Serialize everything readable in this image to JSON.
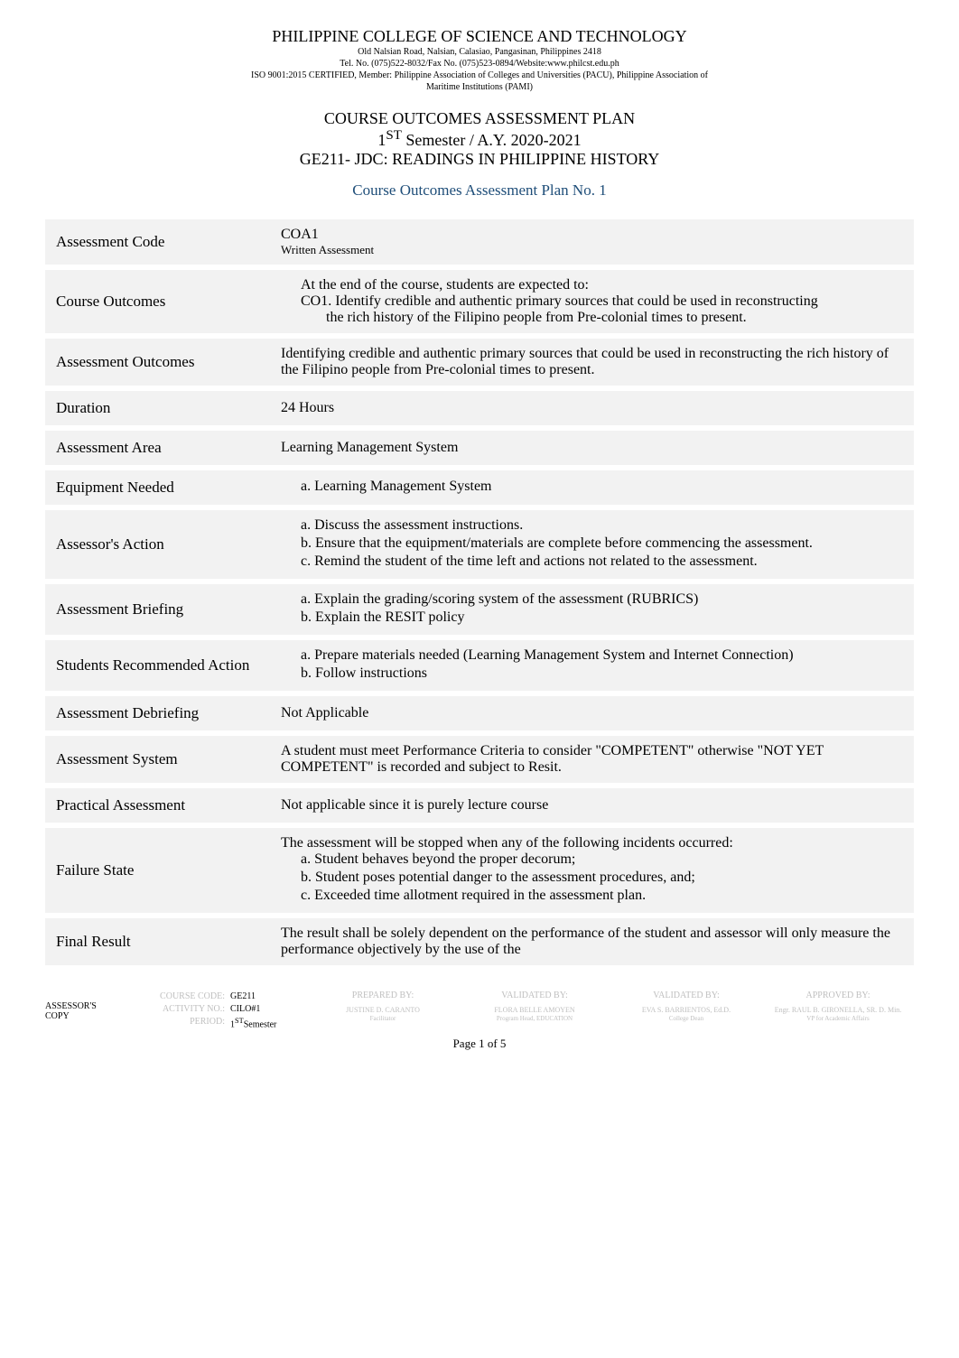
{
  "header": {
    "institution": "PHILIPPINE COLLEGE OF SCIENCE AND TECHNOLOGY",
    "address": "Old Nalsian Road, Nalsian, Calasiao, Pangasinan, Philippines 2418",
    "contact": "Tel. No. (075)522-8032/Fax No. (075)523-0894/Website:www.philcst.edu.ph",
    "cert": "ISO 9001:2015 CERTIFIED, Member: Philippine Association of Colleges and Universities (PACU), Philippine Association of",
    "cert2": "Maritime Institutions (PAMI)"
  },
  "course_block": {
    "line1": "COURSE OUTCOMES ASSESSMENT PLAN",
    "line2_a": "1",
    "line2_sup": "ST",
    "line2_b": " Semester / A.Y. 2020-2021",
    "line3": "GE211- JDC: READINGS IN PHILIPPINE HISTORY"
  },
  "coap_title": "Course Outcomes Assessment Plan No. 1",
  "rows": [
    {
      "label": "Assessment Code",
      "content_lines": [
        "COA1"
      ],
      "sub_lines": [
        "Written Assessment"
      ]
    },
    {
      "label": "Course Outcomes",
      "content_lines": [],
      "indented_lines": [
        "At the end of the course, students are expected to:",
        "CO1. Identify credible and authentic primary sources that could be used in reconstructing"
      ],
      "indented2_lines": [
        "the rich history of the Filipino people from Pre-colonial times to present."
      ]
    },
    {
      "label": "Assessment Outcomes",
      "content_lines": [
        "Identifying credible and authentic primary sources that could be used in reconstructing the rich history of the Filipino people from Pre-colonial times to present."
      ]
    },
    {
      "label": "Duration",
      "content_lines": [
        "24 Hours"
      ]
    },
    {
      "label": "Assessment Area",
      "content_lines": [
        "Learning Management System"
      ]
    },
    {
      "label": "Equipment Needed",
      "list_a": [
        "Learning Management System"
      ]
    },
    {
      "label": "Assessor's Action",
      "list_a": [
        "Discuss the assessment instructions.",
        "Ensure that the equipment/materials are complete before commencing the assessment.",
        "Remind the student of the time left and actions not related to the assessment."
      ]
    },
    {
      "label": "Assessment Briefing",
      "list_a": [
        "Explain the grading/scoring system of the assessment (RUBRICS)",
        "Explain the RESIT policy"
      ]
    },
    {
      "label": "Students Recommended Action",
      "list_a": [
        "Prepare materials needed (Learning Management System and Internet Connection)",
        "Follow instructions"
      ]
    },
    {
      "label": "Assessment Debriefing",
      "content_lines": [
        "Not Applicable"
      ]
    },
    {
      "label": "Assessment System",
      "content_lines": [
        "A student must meet Performance Criteria to consider \"COMPETENT\" otherwise \"NOT YET COMPETENT\" is recorded and subject to Resit."
      ]
    },
    {
      "label": "Practical Assessment",
      "content_lines": [
        "Not applicable since it is purely lecture course"
      ]
    },
    {
      "label": "Failure State",
      "content_lines": [
        "The assessment will be stopped when any of the following incidents occurred:"
      ],
      "list_a": [
        "Student behaves beyond the proper decorum;",
        "Student poses potential danger to the assessment procedures, and;",
        "Exceeded time allotment required in the assessment plan."
      ]
    },
    {
      "label": "Final Result",
      "content_lines": [
        "The result shall be solely dependent on the performance of the student and assessor will only measure the performance objectively by the use of the"
      ]
    }
  ],
  "footer": {
    "left_label1": "ASSESSOR'S",
    "left_label2": "COPY",
    "codes": {
      "course_code_label": "COURSE CODE:",
      "course_code": "GE211",
      "activity_no_label": "ACTIVITY NO.:",
      "activity_no": "CILO#1",
      "period_label": "PERIOD:",
      "period_a": "1",
      "period_sup": "ST",
      "period_b": "Semester"
    },
    "cols": [
      {
        "head": "PREPARED BY:",
        "name": "JUSTINE D. CARANTO",
        "role": "Facilitator"
      },
      {
        "head": "VALIDATED BY:",
        "name": "FLORA BELLE AMOYEN",
        "role": "Program Head, EDUCATION"
      },
      {
        "head": "VALIDATED BY:",
        "name": "EVA S. BARRIENTOS, Ed.D.",
        "role": "College Dean"
      },
      {
        "head": "APPROVED BY:",
        "name": "Engr. RAUL B. GIRONELLA, SR. D. Min.",
        "role": "VP for Academic Affairs"
      }
    ]
  },
  "page_num": "Page 1 of 5",
  "colors": {
    "row_bg": "#f2f2f2",
    "coap_title": "#1f4e79",
    "footer_gray": "#bfbfbf"
  }
}
